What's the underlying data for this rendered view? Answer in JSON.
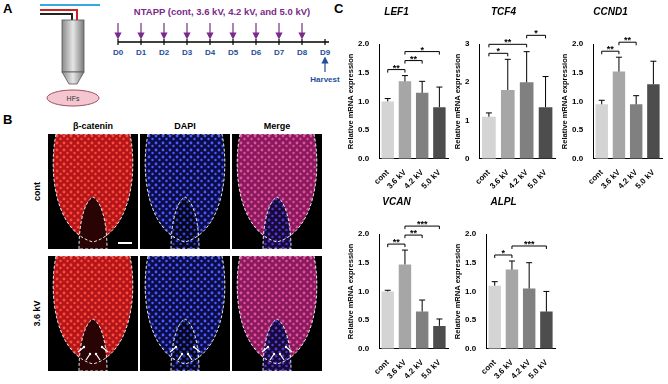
{
  "panel_labels": [
    "A",
    "B",
    "C"
  ],
  "diagram": {
    "treatment": "NTAPP (cont, 3.6 kV, 4.2 kV, and 5.0 kV)",
    "sample": "HFs",
    "days": [
      "D0",
      "D1",
      "D2",
      "D3",
      "D4",
      "D5",
      "D6",
      "D7",
      "D8",
      "D9"
    ],
    "endpoint": "Harvest"
  },
  "micrographs": {
    "stains": [
      "β-catenin",
      "DAPI",
      "Merge"
    ],
    "conditions": [
      "cont",
      "3.6 kV"
    ]
  },
  "chart_data": [
    {
      "type": "bar",
      "title": "LEF1",
      "y_label": "Relative mRNA expression",
      "categories": [
        "cont",
        "3.6 kV",
        "4.2 kV",
        "5.0 kV"
      ],
      "values": [
        1.0,
        1.35,
        1.15,
        0.9
      ],
      "errors": [
        0.05,
        0.1,
        0.2,
        0.35
      ],
      "colors": [
        "#d4d4d4",
        "#a6a6a6",
        "#808080",
        "#4d4d4d"
      ],
      "ylim": [
        0,
        2
      ],
      "yticks": [
        {
          "value": 0,
          "label": "0.0"
        },
        0.5,
        {
          "value": 1,
          "label": "1.0"
        },
        1.5,
        {
          "value": 2,
          "label": "2.0"
        }
      ],
      "grid": false,
      "significance": [
        {
          "from": 0,
          "to": 1,
          "label": "**"
        },
        {
          "from": 1,
          "to": 2,
          "label": "**"
        },
        {
          "from": 1,
          "to": 3,
          "label": "*"
        }
      ]
    },
    {
      "type": "bar",
      "title": "TCF4",
      "y_label": "Relative mRNA expression",
      "categories": [
        "cont",
        "3.6 kV",
        "4.2 kV",
        "5.0 kV"
      ],
      "values": [
        1.1,
        1.8,
        2.0,
        1.35
      ],
      "errors": [
        0.1,
        0.8,
        0.8,
        0.8
      ],
      "colors": [
        "#d4d4d4",
        "#a6a6a6",
        "#808080",
        "#4d4d4d"
      ],
      "ylim": [
        0,
        3
      ],
      "yticks": [
        0,
        1,
        2,
        3
      ],
      "grid": false,
      "significance": [
        {
          "from": 0,
          "to": 1,
          "label": "*"
        },
        {
          "from": 0,
          "to": 2,
          "label": "**"
        },
        {
          "from": 2,
          "to": 3,
          "label": "*"
        }
      ]
    },
    {
      "type": "bar",
      "title": "CCND1",
      "y_label": "Relative mRNA expression",
      "categories": [
        "cont",
        "3.6 kV",
        "4.2 kV",
        "5.0 kV"
      ],
      "values": [
        0.95,
        1.52,
        0.95,
        1.3
      ],
      "errors": [
        0.07,
        0.25,
        0.15,
        0.4
      ],
      "colors": [
        "#d4d4d4",
        "#a6a6a6",
        "#808080",
        "#4d4d4d"
      ],
      "ylim": [
        0,
        2
      ],
      "yticks": [
        {
          "value": 0,
          "label": "0.0"
        },
        0.5,
        {
          "value": 1,
          "label": "1.0"
        },
        1.5,
        {
          "value": 2,
          "label": "2.0"
        }
      ],
      "grid": false,
      "significance": [
        {
          "from": 0,
          "to": 1,
          "label": "**"
        },
        {
          "from": 1,
          "to": 2,
          "label": "**"
        }
      ]
    },
    {
      "type": "bar",
      "title": "VCAN",
      "y_label": "Relative mRNA expression",
      "categories": [
        "cont",
        "3.6 kV",
        "4.2 kV",
        "5.0 kV"
      ],
      "values": [
        1.0,
        1.47,
        0.65,
        0.4
      ],
      "errors": [
        0.02,
        0.25,
        0.2,
        0.12
      ],
      "colors": [
        "#d4d4d4",
        "#a6a6a6",
        "#808080",
        "#4d4d4d"
      ],
      "ylim": [
        0,
        2
      ],
      "yticks": [
        {
          "value": 0,
          "label": "0.0"
        },
        0.5,
        {
          "value": 1,
          "label": "1.0"
        },
        1.5,
        {
          "value": 2,
          "label": "2.0"
        }
      ],
      "grid": false,
      "significance": [
        {
          "from": 0,
          "to": 1,
          "label": "**"
        },
        {
          "from": 1,
          "to": 2,
          "label": "**"
        },
        {
          "from": 1,
          "to": 3,
          "label": "***"
        }
      ]
    },
    {
      "type": "bar",
      "title": "ALPL",
      "y_label": "Relative mRNA expression",
      "categories": [
        "cont",
        "3.6 kV",
        "4.2 kV",
        "5.0 kV"
      ],
      "values": [
        1.1,
        1.38,
        1.05,
        0.65
      ],
      "errors": [
        0.07,
        0.15,
        0.45,
        0.35
      ],
      "colors": [
        "#d4d4d4",
        "#a6a6a6",
        "#808080",
        "#4d4d4d"
      ],
      "ylim": [
        0,
        2
      ],
      "yticks": [
        {
          "value": 0,
          "label": "0.0"
        },
        0.5,
        {
          "value": 1,
          "label": "1.0"
        },
        1.5,
        {
          "value": 2,
          "label": "2.0"
        }
      ],
      "grid": false,
      "significance": [
        {
          "from": 0,
          "to": 1,
          "label": "*"
        },
        {
          "from": 1,
          "to": 3,
          "label": "***"
        }
      ]
    }
  ]
}
